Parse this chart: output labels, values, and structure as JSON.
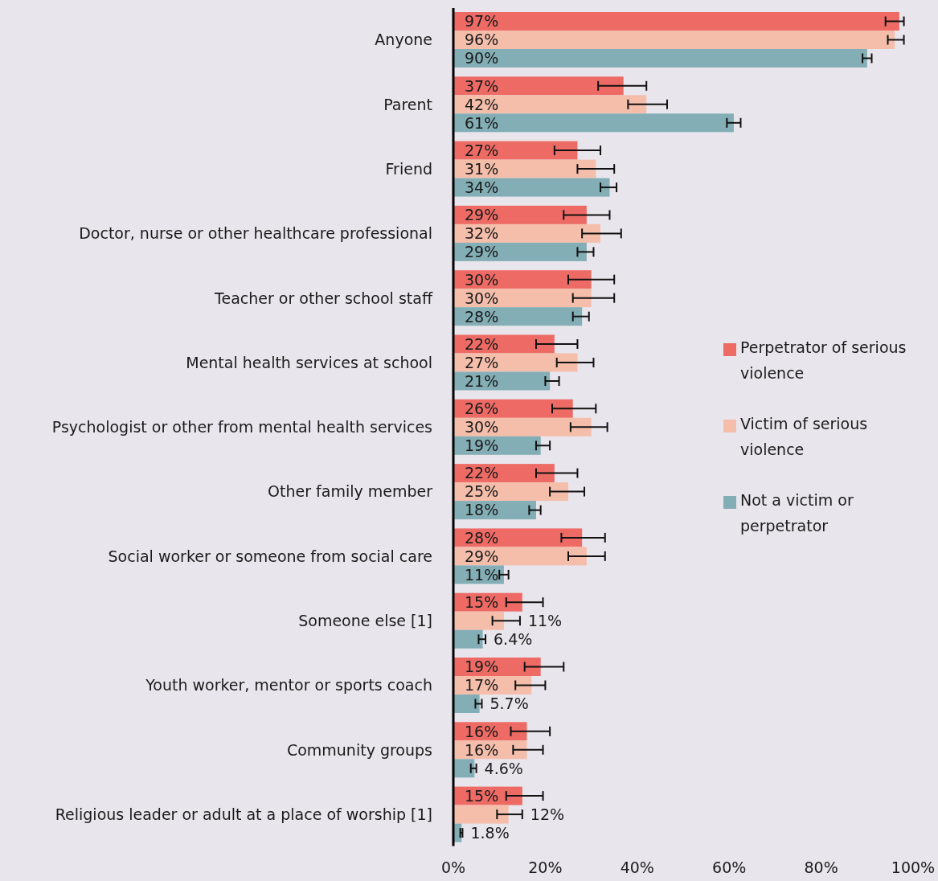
{
  "chart_data": {
    "type": "bar",
    "orientation": "horizontal",
    "categories": [
      "Anyone",
      "Parent",
      "Friend",
      "Doctor, nurse or other healthcare professional",
      "Teacher or other school staff",
      "Mental health services at school",
      "Psychologist or other from mental health services",
      "Other family member",
      "Social worker or someone from social care",
      "Someone else [1]",
      "Youth worker, mentor or sports coach",
      "Community groups",
      "Religious leader or adult at a place of worship [1]"
    ],
    "series": [
      {
        "name": "Perpetrator of serious violence",
        "color": "#ee6b65",
        "values": [
          97,
          37,
          27,
          29,
          30,
          22,
          26,
          22,
          28,
          15,
          19,
          16,
          15
        ],
        "value_labels": [
          "97%",
          "37%",
          "27%",
          "29%",
          "30%",
          "22%",
          "26%",
          "22%",
          "28%",
          "15%",
          "19%",
          "16%",
          "15%"
        ],
        "errors": [
          [
            94,
            98
          ],
          [
            31.5,
            42
          ],
          [
            22,
            32
          ],
          [
            24,
            34
          ],
          [
            25,
            35
          ],
          [
            18,
            27
          ],
          [
            21.5,
            31
          ],
          [
            18,
            27
          ],
          [
            23.5,
            33
          ],
          [
            11.5,
            19.5
          ],
          [
            15.5,
            24
          ],
          [
            12.5,
            21
          ],
          [
            11.5,
            19.5
          ]
        ]
      },
      {
        "name": "Victim of serious violence",
        "color": "#f5beab",
        "values": [
          96,
          42,
          31,
          32,
          30,
          27,
          30,
          25,
          29,
          11,
          17,
          16,
          12
        ],
        "value_labels": [
          "96%",
          "42%",
          "31%",
          "32%",
          "30%",
          "27%",
          "30%",
          "25%",
          "29%",
          "11%",
          "17%",
          "16%",
          "12%"
        ],
        "errors": [
          [
            94.5,
            98
          ],
          [
            38,
            46.5
          ],
          [
            27,
            35
          ],
          [
            28,
            36.5
          ],
          [
            26,
            35
          ],
          [
            22.5,
            30.5
          ],
          [
            25.5,
            33.5
          ],
          [
            21,
            28.5
          ],
          [
            25,
            33
          ],
          [
            8.5,
            14.5
          ],
          [
            13.5,
            20
          ],
          [
            13,
            19.5
          ],
          [
            9.5,
            15
          ]
        ]
      },
      {
        "name": "Not a victim or perpetrator",
        "color": "#83aeb5",
        "values": [
          90,
          61,
          34,
          29,
          28,
          21,
          19,
          18,
          11,
          6.4,
          5.7,
          4.6,
          1.8
        ],
        "value_labels": [
          "90%",
          "61%",
          "34%",
          "29%",
          "28%",
          "21%",
          "19%",
          "18%",
          "11%",
          "6.4%",
          "5.7%",
          "4.6%",
          "1.8%"
        ],
        "errors": [
          [
            89,
            91
          ],
          [
            59.5,
            62.5
          ],
          [
            32,
            35.5
          ],
          [
            27,
            30.5
          ],
          [
            26,
            29.5
          ],
          [
            20,
            23
          ],
          [
            18,
            21
          ],
          [
            16.5,
            19
          ],
          [
            10,
            12
          ],
          [
            5.5,
            7
          ],
          [
            4.8,
            6.2
          ],
          [
            3.8,
            5
          ],
          [
            1.5,
            2
          ]
        ]
      }
    ],
    "xlim": [
      0,
      100
    ],
    "xticks": [
      {
        "value": 0,
        "label": "0%"
      },
      {
        "value": 20,
        "label": "20%"
      },
      {
        "value": 40,
        "label": "40%"
      },
      {
        "value": 60,
        "label": "60%"
      },
      {
        "value": 80,
        "label": "80%"
      },
      {
        "value": 100,
        "label": "100%"
      }
    ],
    "grid": false,
    "legend": "right"
  }
}
